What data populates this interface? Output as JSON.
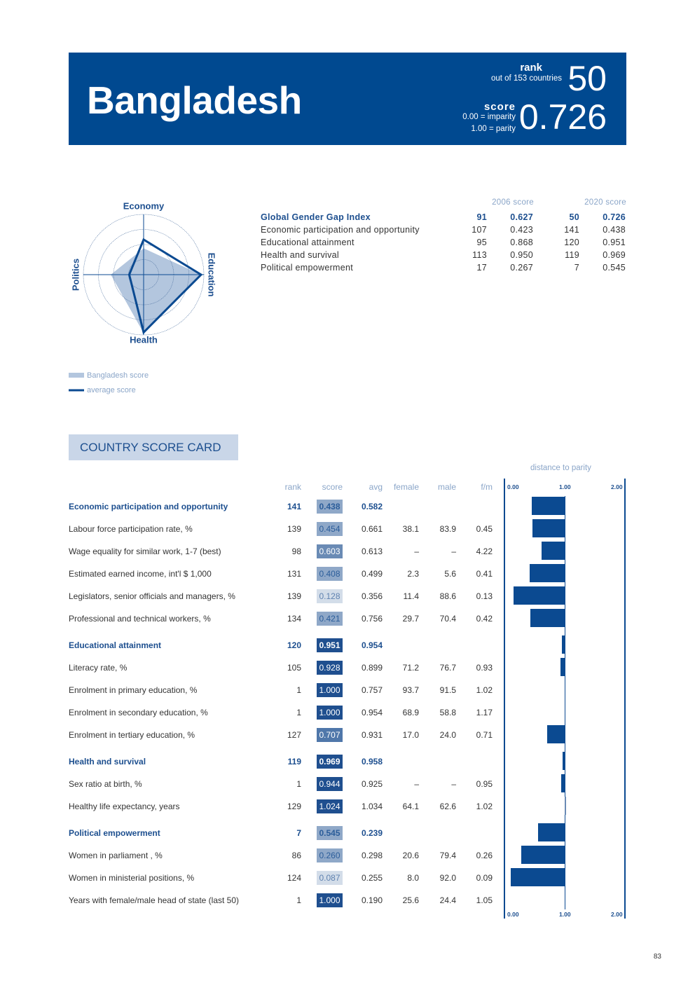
{
  "header": {
    "country": "Bangladesh",
    "rank_label": "rank",
    "rank_sub": "out of 153 countries",
    "rank_value": "50",
    "score_label": "score",
    "score_sub1": "0.00 = imparity",
    "score_sub2": "1.00 = parity",
    "score_value": "0.726"
  },
  "radar": {
    "axes": [
      "Economy",
      "Education",
      "Health",
      "Politics"
    ],
    "country_values": [
      0.438,
      0.951,
      0.969,
      0.545
    ],
    "average_values": [
      0.582,
      0.954,
      0.958,
      0.239
    ],
    "max": 1.0,
    "legend_country": "Bangladesh score",
    "legend_average": "average score",
    "colors": {
      "country": "#b3c6de",
      "average": "#0b4a91"
    }
  },
  "summary": {
    "col_2006": "2006 score",
    "col_2020": "2020 score",
    "rows": [
      {
        "label": "Global Gender Gap Index",
        "r06": "91",
        "s06": "0.627",
        "r20": "50",
        "s20": "0.726",
        "bold": true
      },
      {
        "label": "Economic participation and opportunity",
        "r06": "107",
        "s06": "0.423",
        "r20": "141",
        "s20": "0.438"
      },
      {
        "label": "Educational attainment",
        "r06": "95",
        "s06": "0.868",
        "r20": "120",
        "s20": "0.951"
      },
      {
        "label": "Health and survival",
        "r06": "113",
        "s06": "0.950",
        "r20": "119",
        "s20": "0.969"
      },
      {
        "label": "Political empowerment",
        "r06": "17",
        "s06": "0.267",
        "r20": "7",
        "s20": "0.545"
      }
    ]
  },
  "scorecard": {
    "title": "COUNTRY SCORE CARD",
    "distance_label": "distance to parity",
    "headers": {
      "rank": "rank",
      "score": "score",
      "avg": "avg",
      "female": "female",
      "male": "male",
      "fm": "f/m"
    },
    "axis_ticks": [
      "0.00",
      "1.00",
      "2.00"
    ],
    "rows": [
      {
        "section": true,
        "label": "Economic participation and opportunity",
        "rank": "141",
        "score": 0.438,
        "avg": "0.582"
      },
      {
        "label": "Labour force participation rate, %",
        "rank": "139",
        "score": 0.454,
        "avg": "0.661",
        "female": "38.1",
        "male": "83.9",
        "fm": "0.45"
      },
      {
        "label": "Wage equality for similar work, 1-7 (best)",
        "rank": "98",
        "score": 0.603,
        "avg": "0.613",
        "female": "–",
        "male": "–",
        "fm": "4.22"
      },
      {
        "label": "Estimated earned income, int'l $ 1,000",
        "rank": "131",
        "score": 0.408,
        "avg": "0.499",
        "female": "2.3",
        "male": "5.6",
        "fm": "0.41"
      },
      {
        "label": "Legislators, senior officials and managers, %",
        "rank": "139",
        "score": 0.128,
        "avg": "0.356",
        "female": "11.4",
        "male": "88.6",
        "fm": "0.13"
      },
      {
        "label": "Professional and technical workers, %",
        "rank": "134",
        "score": 0.421,
        "avg": "0.756",
        "female": "29.7",
        "male": "70.4",
        "fm": "0.42"
      },
      {
        "section": true,
        "label": "Educational attainment",
        "rank": "120",
        "score": 0.951,
        "avg": "0.954"
      },
      {
        "label": "Literacy rate, %",
        "rank": "105",
        "score": 0.928,
        "avg": "0.899",
        "female": "71.2",
        "male": "76.7",
        "fm": "0.93"
      },
      {
        "label": "Enrolment in primary education, %",
        "rank": "1",
        "score": 1.0,
        "avg": "0.757",
        "female": "93.7",
        "male": "91.5",
        "fm": "1.02"
      },
      {
        "label": "Enrolment in secondary education, %",
        "rank": "1",
        "score": 1.0,
        "avg": "0.954",
        "female": "68.9",
        "male": "58.8",
        "fm": "1.17"
      },
      {
        "label": "Enrolment in tertiary education, %",
        "rank": "127",
        "score": 0.707,
        "avg": "0.931",
        "female": "17.0",
        "male": "24.0",
        "fm": "0.71"
      },
      {
        "section": true,
        "label": "Health and survival",
        "rank": "119",
        "score": 0.969,
        "avg": "0.958"
      },
      {
        "label": "Sex ratio at birth, %",
        "rank": "1",
        "score": 0.944,
        "avg": "0.925",
        "female": "–",
        "male": "–",
        "fm": "0.95"
      },
      {
        "label": "Healthy life expectancy, years",
        "rank": "129",
        "score": 1.024,
        "avg": "1.034",
        "female": "64.1",
        "male": "62.6",
        "fm": "1.02"
      },
      {
        "section": true,
        "label": "Political empowerment",
        "rank": "7",
        "score": 0.545,
        "avg": "0.239"
      },
      {
        "label": "Women in parliament , %",
        "rank": "86",
        "score": 0.26,
        "avg": "0.298",
        "female": "20.6",
        "male": "79.4",
        "fm": "0.26"
      },
      {
        "label": "Women in ministerial positions, %",
        "rank": "124",
        "score": 0.087,
        "avg": "0.255",
        "female": "8.0",
        "male": "92.0",
        "fm": "0.09"
      },
      {
        "label": "Years with female/male head of state (last 50)",
        "rank": "1",
        "score": 1.0,
        "avg": "0.190",
        "female": "25.6",
        "male": "24.4",
        "fm": "1.05"
      }
    ],
    "bar_color": "#0b4a91"
  },
  "page_number": "83"
}
